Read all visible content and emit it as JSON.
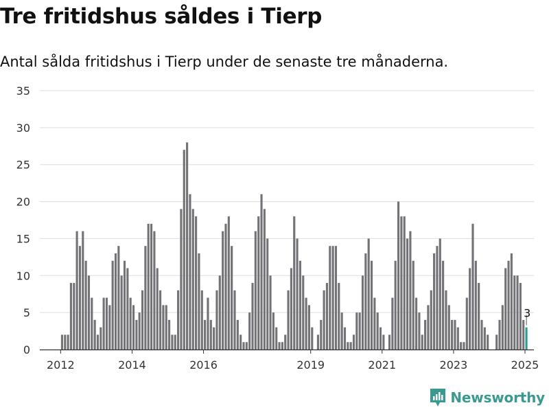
{
  "header": {
    "title": "Tre fritidshus såldes i Tierp",
    "subtitle": "Antal sålda fritidshus i Tierp under de senaste tre månaderna."
  },
  "brand": {
    "name": "Newsworthy",
    "icon": "newsworthy-logo-icon"
  },
  "colors": {
    "bar": "#737276",
    "highlight": "#2a9d8f",
    "grid": "#dddddd",
    "axis": "#333333",
    "brand": "#3a9a91"
  },
  "chart_data": {
    "type": "bar",
    "title": "Tre fritidshus såldes i Tierp",
    "subtitle": "Antal sålda fritidshus i Tierp under de senaste tre månaderna.",
    "xlabel": "",
    "ylabel": "",
    "ylim": [
      0,
      35
    ],
    "yticks": [
      0,
      5,
      10,
      15,
      20,
      25,
      30,
      35
    ],
    "xlim": [
      "2011-06",
      "2025-04"
    ],
    "xticks": [
      {
        "label": "2012",
        "at": "2012-01"
      },
      {
        "label": "2014",
        "at": "2014-01"
      },
      {
        "label": "2016",
        "at": "2016-01"
      },
      {
        "label": "2019",
        "at": "2019-01"
      },
      {
        "label": "2021",
        "at": "2021-01"
      },
      {
        "label": "2023",
        "at": "2023-01"
      },
      {
        "label": "2025",
        "at": "2025-01"
      }
    ],
    "grid": true,
    "legend": "none",
    "start_month": "2011-06",
    "values": [
      0,
      0,
      0,
      0,
      0,
      0,
      0,
      2,
      2,
      2,
      9,
      9,
      16,
      14,
      16,
      12,
      10,
      7,
      4,
      2,
      3,
      7,
      7,
      6,
      12,
      13,
      14,
      10,
      12,
      11,
      7,
      6,
      4,
      5,
      8,
      14,
      17,
      17,
      16,
      11,
      8,
      6,
      6,
      4,
      2,
      2,
      8,
      19,
      27,
      28,
      21,
      19,
      18,
      13,
      8,
      4,
      7,
      4,
      3,
      8,
      10,
      16,
      17,
      18,
      14,
      8,
      4,
      2,
      1,
      1,
      5,
      9,
      16,
      18,
      21,
      19,
      15,
      10,
      5,
      3,
      1,
      1,
      2,
      8,
      11,
      18,
      15,
      12,
      10,
      7,
      6,
      3,
      0,
      2,
      4,
      8,
      9,
      14,
      14,
      14,
      9,
      5,
      3,
      1,
      1,
      2,
      5,
      5,
      10,
      13,
      15,
      12,
      7,
      5,
      3,
      2,
      0,
      2,
      7,
      12,
      20,
      18,
      18,
      15,
      16,
      12,
      7,
      5,
      2,
      4,
      6,
      8,
      13,
      14,
      15,
      12,
      8,
      6,
      4,
      4,
      3,
      1,
      1,
      7,
      11,
      17,
      12,
      9,
      4,
      3,
      2,
      0,
      0,
      2,
      4,
      6,
      11,
      12,
      13,
      10,
      10,
      9,
      4,
      3
    ],
    "highlight_last": true,
    "annotation": {
      "label": "3",
      "value": 3,
      "at": "2025-01"
    }
  }
}
